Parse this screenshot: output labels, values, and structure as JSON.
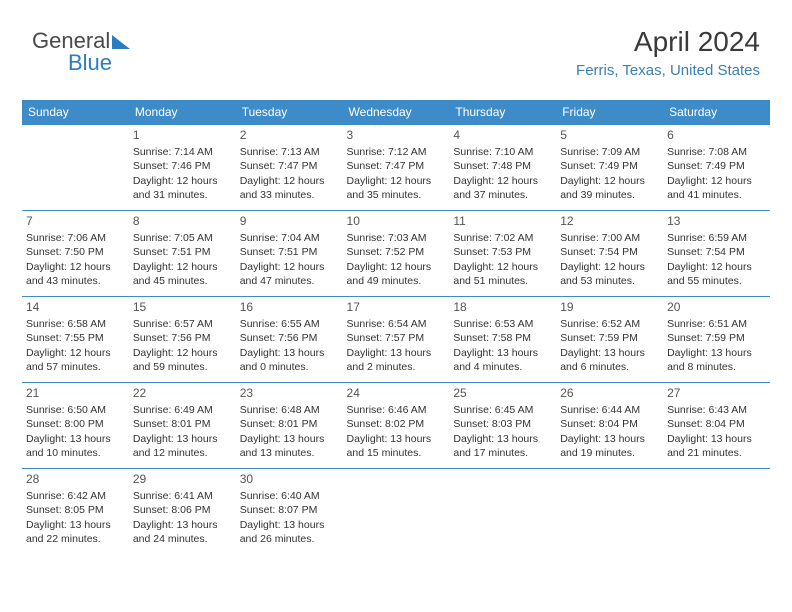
{
  "logo": {
    "part1": "General",
    "part2": "Blue"
  },
  "header": {
    "title": "April 2024",
    "location": "Ferris, Texas, United States"
  },
  "colors": {
    "header_blue": "#3d8bc8",
    "link_blue": "#3b7fb5",
    "text": "#333333",
    "background": "#ffffff"
  },
  "weekdays": [
    "Sunday",
    "Monday",
    "Tuesday",
    "Wednesday",
    "Thursday",
    "Friday",
    "Saturday"
  ],
  "weeks": [
    [
      null,
      {
        "n": "1",
        "sr": "7:14 AM",
        "ss": "7:46 PM",
        "dh": "12",
        "dm": "31"
      },
      {
        "n": "2",
        "sr": "7:13 AM",
        "ss": "7:47 PM",
        "dh": "12",
        "dm": "33"
      },
      {
        "n": "3",
        "sr": "7:12 AM",
        "ss": "7:47 PM",
        "dh": "12",
        "dm": "35"
      },
      {
        "n": "4",
        "sr": "7:10 AM",
        "ss": "7:48 PM",
        "dh": "12",
        "dm": "37"
      },
      {
        "n": "5",
        "sr": "7:09 AM",
        "ss": "7:49 PM",
        "dh": "12",
        "dm": "39"
      },
      {
        "n": "6",
        "sr": "7:08 AM",
        "ss": "7:49 PM",
        "dh": "12",
        "dm": "41"
      }
    ],
    [
      {
        "n": "7",
        "sr": "7:06 AM",
        "ss": "7:50 PM",
        "dh": "12",
        "dm": "43"
      },
      {
        "n": "8",
        "sr": "7:05 AM",
        "ss": "7:51 PM",
        "dh": "12",
        "dm": "45"
      },
      {
        "n": "9",
        "sr": "7:04 AM",
        "ss": "7:51 PM",
        "dh": "12",
        "dm": "47"
      },
      {
        "n": "10",
        "sr": "7:03 AM",
        "ss": "7:52 PM",
        "dh": "12",
        "dm": "49"
      },
      {
        "n": "11",
        "sr": "7:02 AM",
        "ss": "7:53 PM",
        "dh": "12",
        "dm": "51"
      },
      {
        "n": "12",
        "sr": "7:00 AM",
        "ss": "7:54 PM",
        "dh": "12",
        "dm": "53"
      },
      {
        "n": "13",
        "sr": "6:59 AM",
        "ss": "7:54 PM",
        "dh": "12",
        "dm": "55"
      }
    ],
    [
      {
        "n": "14",
        "sr": "6:58 AM",
        "ss": "7:55 PM",
        "dh": "12",
        "dm": "57"
      },
      {
        "n": "15",
        "sr": "6:57 AM",
        "ss": "7:56 PM",
        "dh": "12",
        "dm": "59"
      },
      {
        "n": "16",
        "sr": "6:55 AM",
        "ss": "7:56 PM",
        "dh": "13",
        "dm": "0"
      },
      {
        "n": "17",
        "sr": "6:54 AM",
        "ss": "7:57 PM",
        "dh": "13",
        "dm": "2"
      },
      {
        "n": "18",
        "sr": "6:53 AM",
        "ss": "7:58 PM",
        "dh": "13",
        "dm": "4"
      },
      {
        "n": "19",
        "sr": "6:52 AM",
        "ss": "7:59 PM",
        "dh": "13",
        "dm": "6"
      },
      {
        "n": "20",
        "sr": "6:51 AM",
        "ss": "7:59 PM",
        "dh": "13",
        "dm": "8"
      }
    ],
    [
      {
        "n": "21",
        "sr": "6:50 AM",
        "ss": "8:00 PM",
        "dh": "13",
        "dm": "10"
      },
      {
        "n": "22",
        "sr": "6:49 AM",
        "ss": "8:01 PM",
        "dh": "13",
        "dm": "12"
      },
      {
        "n": "23",
        "sr": "6:48 AM",
        "ss": "8:01 PM",
        "dh": "13",
        "dm": "13"
      },
      {
        "n": "24",
        "sr": "6:46 AM",
        "ss": "8:02 PM",
        "dh": "13",
        "dm": "15"
      },
      {
        "n": "25",
        "sr": "6:45 AM",
        "ss": "8:03 PM",
        "dh": "13",
        "dm": "17"
      },
      {
        "n": "26",
        "sr": "6:44 AM",
        "ss": "8:04 PM",
        "dh": "13",
        "dm": "19"
      },
      {
        "n": "27",
        "sr": "6:43 AM",
        "ss": "8:04 PM",
        "dh": "13",
        "dm": "21"
      }
    ],
    [
      {
        "n": "28",
        "sr": "6:42 AM",
        "ss": "8:05 PM",
        "dh": "13",
        "dm": "22"
      },
      {
        "n": "29",
        "sr": "6:41 AM",
        "ss": "8:06 PM",
        "dh": "13",
        "dm": "24"
      },
      {
        "n": "30",
        "sr": "6:40 AM",
        "ss": "8:07 PM",
        "dh": "13",
        "dm": "26"
      },
      null,
      null,
      null,
      null
    ]
  ],
  "labels": {
    "sunrise_prefix": "Sunrise: ",
    "sunset_prefix": "Sunset: ",
    "daylight_prefix": "Daylight: ",
    "hours_word": " hours",
    "and_word": "and ",
    "minutes_word": " minutes."
  }
}
